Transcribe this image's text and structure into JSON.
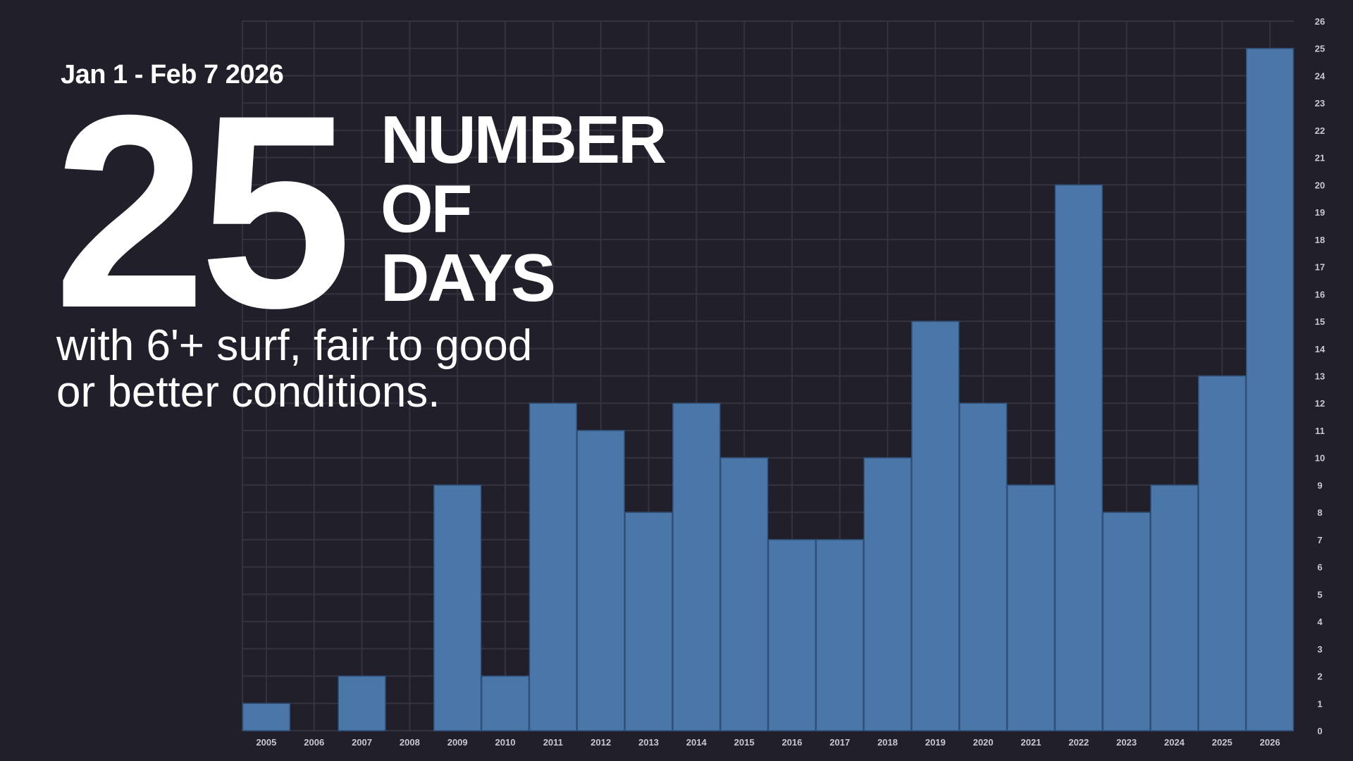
{
  "headline": {
    "date_range": "Jan 1 - Feb 7 2026",
    "big_number": "25",
    "label_lines": [
      "NUMBER",
      "OF",
      "DAYS"
    ],
    "subtitle_lines": [
      "with 6'+ surf, fair to good",
      "or better conditions."
    ]
  },
  "colors": {
    "background": "#201f2a",
    "bar": "#4a76a8",
    "bar_border": "#2f4f78",
    "grid": "#34333f",
    "tick_text": "#c9c9d0"
  },
  "chart_data": {
    "type": "bar",
    "categories": [
      "2005",
      "2006",
      "2007",
      "2008",
      "2009",
      "2010",
      "2011",
      "2012",
      "2013",
      "2014",
      "2015",
      "2016",
      "2017",
      "2018",
      "2019",
      "2020",
      "2021",
      "2022",
      "2023",
      "2024",
      "2025",
      "2026"
    ],
    "values": [
      1,
      0,
      2,
      0,
      9,
      2,
      12,
      11,
      8,
      12,
      10,
      7,
      7,
      10,
      15,
      12,
      9,
      20,
      8,
      9,
      13,
      25
    ],
    "ylim": [
      0,
      26
    ],
    "yticks": [
      0,
      1,
      2,
      3,
      4,
      5,
      6,
      7,
      8,
      9,
      10,
      11,
      12,
      13,
      14,
      15,
      16,
      17,
      18,
      19,
      20,
      21,
      22,
      23,
      24,
      25,
      26
    ],
    "y_axis_position": "right",
    "grid": true,
    "title": "",
    "xlabel": "",
    "ylabel": ""
  }
}
